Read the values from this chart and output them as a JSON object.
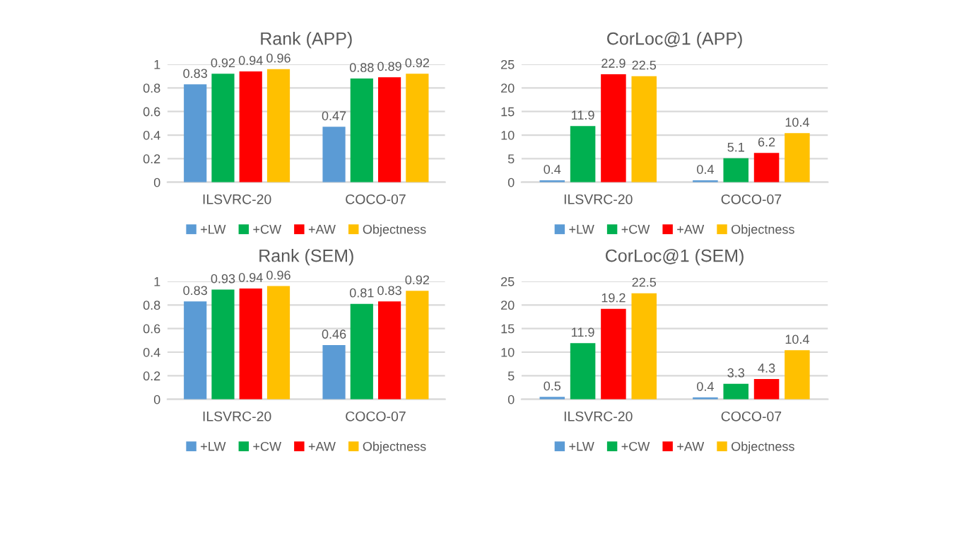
{
  "chart_data": [
    {
      "type": "bar",
      "title": "Rank (APP)",
      "categories": [
        "ILSVRC-20",
        "COCO-07"
      ],
      "ylim": [
        0,
        1
      ],
      "yticks": [
        0,
        0.2,
        0.4,
        0.6,
        0.8,
        1
      ],
      "grid": "y",
      "legend": "bottom",
      "data_labels": true,
      "series": [
        {
          "name": "+LW",
          "color": "#5b9bd5",
          "values": [
            0.83,
            0.47
          ]
        },
        {
          "name": "+CW",
          "color": "#00b050",
          "values": [
            0.92,
            0.88
          ]
        },
        {
          "name": "+AW",
          "color": "#ff0000",
          "values": [
            0.94,
            0.89
          ]
        },
        {
          "name": "Objectness",
          "color": "#ffc000",
          "values": [
            0.96,
            0.92
          ]
        }
      ]
    },
    {
      "type": "bar",
      "title": "CorLoc@1 (APP)",
      "categories": [
        "ILSVRC-20",
        "COCO-07"
      ],
      "ylim": [
        0,
        25
      ],
      "yticks": [
        0,
        5,
        10,
        15,
        20,
        25
      ],
      "grid": "y",
      "legend": "bottom",
      "data_labels": true,
      "series": [
        {
          "name": "+LW",
          "color": "#5b9bd5",
          "values": [
            0.4,
            0.4
          ]
        },
        {
          "name": "+CW",
          "color": "#00b050",
          "values": [
            11.9,
            5.1
          ]
        },
        {
          "name": "+AW",
          "color": "#ff0000",
          "values": [
            22.9,
            6.2
          ]
        },
        {
          "name": "Objectness",
          "color": "#ffc000",
          "values": [
            22.5,
            10.4
          ]
        }
      ]
    },
    {
      "type": "bar",
      "title": "Rank (SEM)",
      "categories": [
        "ILSVRC-20",
        "COCO-07"
      ],
      "ylim": [
        0,
        1
      ],
      "yticks": [
        0,
        0.2,
        0.4,
        0.6,
        0.8,
        1
      ],
      "grid": "y",
      "legend": "bottom",
      "data_labels": true,
      "series": [
        {
          "name": "+LW",
          "color": "#5b9bd5",
          "values": [
            0.83,
            0.46
          ]
        },
        {
          "name": "+CW",
          "color": "#00b050",
          "values": [
            0.93,
            0.81
          ]
        },
        {
          "name": "+AW",
          "color": "#ff0000",
          "values": [
            0.94,
            0.83
          ]
        },
        {
          "name": "Objectness",
          "color": "#ffc000",
          "values": [
            0.96,
            0.92
          ]
        }
      ]
    },
    {
      "type": "bar",
      "title": "CorLoc@1 (SEM)",
      "categories": [
        "ILSVRC-20",
        "COCO-07"
      ],
      "ylim": [
        0,
        25
      ],
      "yticks": [
        0,
        5,
        10,
        15,
        20,
        25
      ],
      "grid": "y",
      "legend": "bottom",
      "data_labels": true,
      "series": [
        {
          "name": "+LW",
          "color": "#5b9bd5",
          "values": [
            0.5,
            0.4
          ]
        },
        {
          "name": "+CW",
          "color": "#00b050",
          "values": [
            11.9,
            3.3
          ]
        },
        {
          "name": "+AW",
          "color": "#ff0000",
          "values": [
            19.2,
            4.3
          ]
        },
        {
          "name": "Objectness",
          "color": "#ffc000",
          "values": [
            22.5,
            10.4
          ]
        }
      ]
    }
  ]
}
